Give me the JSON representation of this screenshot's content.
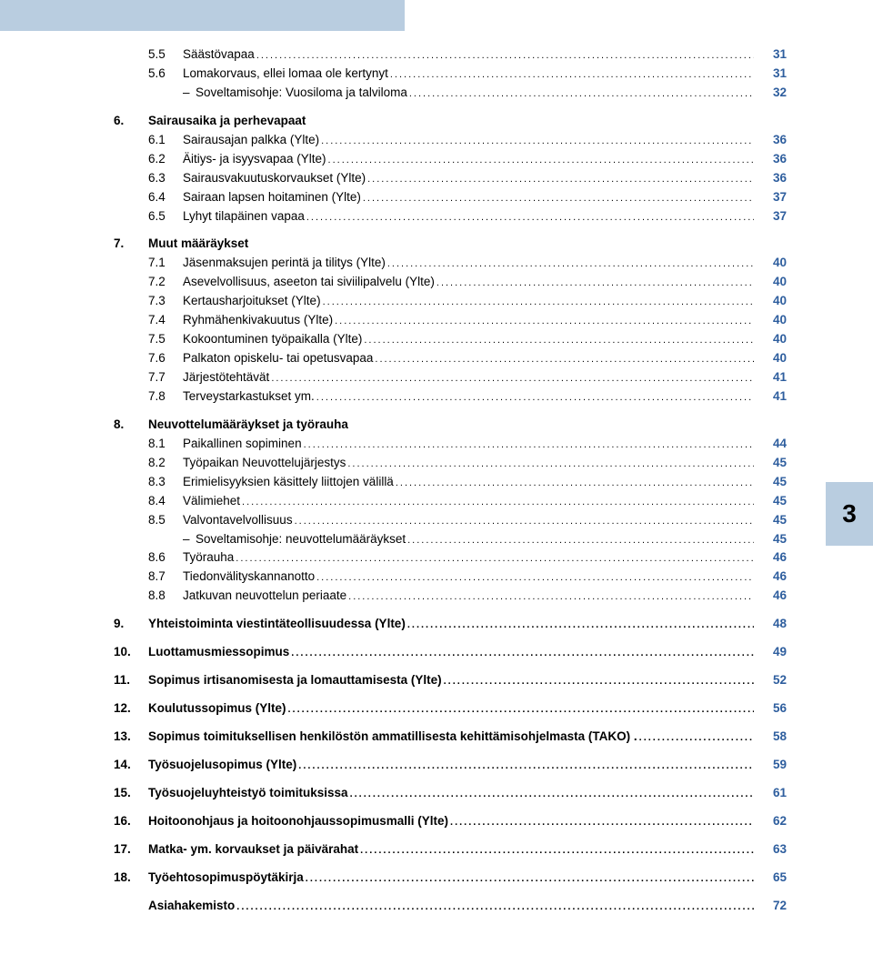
{
  "side_tab": "3",
  "colors": {
    "tab_bg": "#b9cde0",
    "page_num": "#2e5e9e",
    "text": "#000000",
    "bg": "#ffffff"
  },
  "toc": [
    {
      "type": "sub",
      "num": "5.5",
      "title": "Säästövapaa",
      "page": "31"
    },
    {
      "type": "sub",
      "num": "5.6",
      "title": "Lomakorvaus, ellei lomaa ole kertynyt",
      "page": "31"
    },
    {
      "type": "sub2",
      "num": "–",
      "title": "Soveltamisohje: Vuosiloma ja talviloma",
      "page": "32"
    },
    {
      "type": "gap"
    },
    {
      "type": "l1h",
      "num": "6.",
      "title": "Sairausaika ja perhevapaat",
      "page": ""
    },
    {
      "type": "sub",
      "num": "6.1",
      "title": "Sairausajan palkka (Ylte)",
      "page": "36"
    },
    {
      "type": "sub",
      "num": "6.2",
      "title": "Äitiys- ja isyysvapaa (Ylte)",
      "page": "36"
    },
    {
      "type": "sub",
      "num": "6.3",
      "title": "Sairausvakuutuskorvaukset (Ylte)",
      "page": "36"
    },
    {
      "type": "sub",
      "num": "6.4",
      "title": "Sairaan lapsen hoitaminen (Ylte)",
      "page": "37"
    },
    {
      "type": "sub",
      "num": "6.5",
      "title": "Lyhyt tilapäinen vapaa",
      "page": "37"
    },
    {
      "type": "gap"
    },
    {
      "type": "l1h",
      "num": "7.",
      "title": "Muut määräykset",
      "page": ""
    },
    {
      "type": "sub",
      "num": "7.1",
      "title": "Jäsenmaksujen perintä ja tilitys (Ylte)",
      "page": "40"
    },
    {
      "type": "sub",
      "num": "7.2",
      "title": "Asevelvollisuus, aseeton tai siviilipalvelu (Ylte)",
      "page": "40"
    },
    {
      "type": "sub",
      "num": "7.3",
      "title": "Kertausharjoitukset (Ylte)",
      "page": "40"
    },
    {
      "type": "sub",
      "num": "7.4",
      "title": "Ryhmähenkivakuutus (Ylte)",
      "page": "40"
    },
    {
      "type": "sub",
      "num": "7.5",
      "title": "Kokoontuminen työpaikalla (Ylte)",
      "page": "40"
    },
    {
      "type": "sub",
      "num": "7.6",
      "title": "Palkaton opiskelu- tai opetusvapaa",
      "page": "40"
    },
    {
      "type": "sub",
      "num": "7.7",
      "title": "Järjestötehtävät",
      "page": "41"
    },
    {
      "type": "sub",
      "num": "7.8",
      "title": "Terveystarkastukset ym.",
      "page": "41"
    },
    {
      "type": "gap"
    },
    {
      "type": "l1h",
      "num": "8.",
      "title": "Neuvottelumääräykset ja työrauha",
      "page": ""
    },
    {
      "type": "sub",
      "num": "8.1",
      "title": "Paikallinen sopiminen",
      "page": "44"
    },
    {
      "type": "sub",
      "num": "8.2",
      "title": "Työpaikan Neuvottelujärjestys",
      "page": "45"
    },
    {
      "type": "sub",
      "num": "8.3",
      "title": "Erimielisyyksien käsittely liittojen välillä",
      "page": "45"
    },
    {
      "type": "sub",
      "num": "8.4",
      "title": "Välimiehet",
      "page": "45"
    },
    {
      "type": "sub",
      "num": "8.5",
      "title": "Valvontavelvollisuus",
      "page": "45"
    },
    {
      "type": "sub2",
      "num": "–",
      "title": "Soveltamisohje: neuvottelumääräykset",
      "page": "45"
    },
    {
      "type": "sub",
      "num": "8.6",
      "title": "Työrauha",
      "page": "46"
    },
    {
      "type": "sub",
      "num": "8.7",
      "title": "Tiedonvälityskannanotto",
      "page": "46"
    },
    {
      "type": "sub",
      "num": "8.8",
      "title": "Jatkuvan neuvottelun periaate",
      "page": "46"
    },
    {
      "type": "gap"
    },
    {
      "type": "l1",
      "num": "9.",
      "title": "Yhteistoiminta viestintäteollisuudessa (Ylte)",
      "page": "48"
    },
    {
      "type": "gap"
    },
    {
      "type": "l1",
      "num": "10.",
      "title": "Luottamusmiessopimus",
      "page": "49"
    },
    {
      "type": "gap"
    },
    {
      "type": "l1",
      "num": "11.",
      "title": "Sopimus irtisanomisesta ja lomauttamisesta (Ylte)",
      "page": "52"
    },
    {
      "type": "gap"
    },
    {
      "type": "l1",
      "num": "12.",
      "title": "Koulutussopimus (Ylte)",
      "page": "56"
    },
    {
      "type": "gap"
    },
    {
      "type": "l1",
      "num": "13.",
      "title": "Sopimus toimituksellisen henkilöstön ammatillisesta kehittämisohjelmasta (TAKO) .",
      "page": "58"
    },
    {
      "type": "gap"
    },
    {
      "type": "l1",
      "num": "14.",
      "title": "Työsuojelusopimus (Ylte)",
      "page": "59"
    },
    {
      "type": "gap"
    },
    {
      "type": "l1",
      "num": "15.",
      "title": "Työsuojeluyhteistyö toimituksissa",
      "page": "61"
    },
    {
      "type": "gap"
    },
    {
      "type": "l1",
      "num": "16.",
      "title": "Hoitoonohjaus ja hoitoonohjaussopimusmalli (Ylte)",
      "page": "62"
    },
    {
      "type": "gap"
    },
    {
      "type": "l1",
      "num": "17.",
      "title": "Matka- ym. korvaukset ja päivärahat",
      "page": "63"
    },
    {
      "type": "gap"
    },
    {
      "type": "l1",
      "num": "18.",
      "title": "Työehtosopimuspöytäkirja",
      "page": "65"
    },
    {
      "type": "gap"
    },
    {
      "type": "l1i",
      "num": "",
      "title": "Asiahakemisto",
      "page": "72"
    }
  ]
}
